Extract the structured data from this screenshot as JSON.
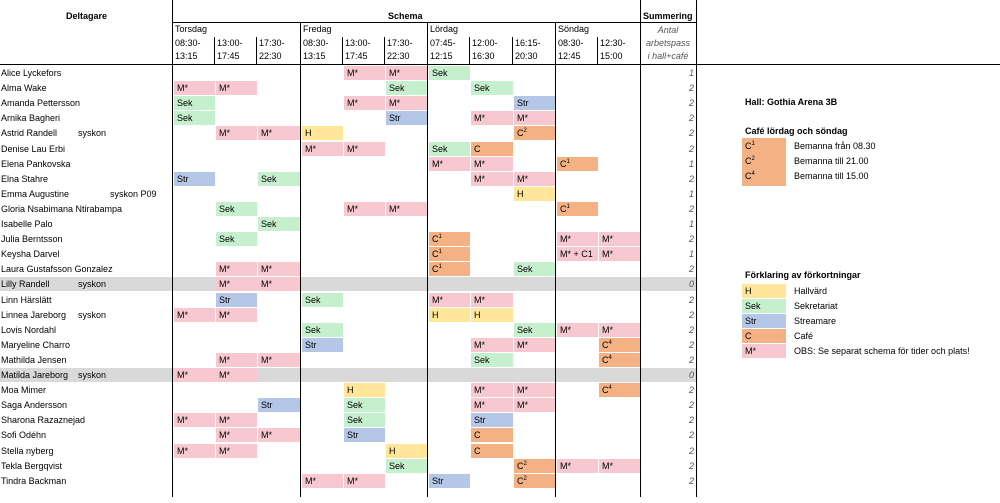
{
  "headers": {
    "participants": "Deltagare",
    "schedule": "Schema",
    "summary": "Summering",
    "summary_sub": [
      "Antal",
      "arbetspass",
      "i hall+café"
    ]
  },
  "days": [
    {
      "name": "Torsdag",
      "slots": [
        [
          "08:30-",
          "13:15"
        ],
        [
          "13:00-",
          "17:45"
        ],
        [
          "17:30-",
          "22:30"
        ]
      ]
    },
    {
      "name": "Fredag",
      "slots": [
        [
          "08:30-",
          "13:15"
        ],
        [
          "13:00-",
          "17:45"
        ],
        [
          "17:30-",
          "22:30"
        ]
      ]
    },
    {
      "name": "Lördag",
      "slots": [
        [
          "07:45-",
          "12:15"
        ],
        [
          "12:00-",
          "16:30"
        ],
        [
          "16:15-",
          "20:30"
        ]
      ]
    },
    {
      "name": "Söndag",
      "slots": [
        [
          "08:30-",
          "12:45"
        ],
        [
          "12:30-",
          "15:00"
        ]
      ]
    }
  ],
  "colors": {
    "sek": "#c6efce",
    "mstar": "#f8c8d0",
    "str": "#b4c7e7",
    "cafe": "#f4b183",
    "h": "#ffe699",
    "grey": "#d9d9d9"
  },
  "rows": [
    {
      "name": "Alice Lyckefors",
      "note": "",
      "count": "1",
      "grey": false,
      "cells": {
        "4": "M*",
        "5": "M*",
        "6": "Sek"
      }
    },
    {
      "name": "Alma Wake",
      "note": "",
      "count": "2",
      "grey": false,
      "cells": {
        "0": "M*",
        "1": "M*",
        "5": "Sek",
        "7": "Sek"
      }
    },
    {
      "name": "Amanda Pettersson",
      "note": "",
      "count": "2",
      "grey": false,
      "cells": {
        "0": "Sek",
        "4": "M*",
        "5": "M*",
        "8": "Str"
      }
    },
    {
      "name": "Arnika Bagheri",
      "note": "",
      "count": "2",
      "grey": false,
      "cells": {
        "0": "Sek",
        "5": "Str",
        "7": "M*",
        "8": "M*"
      }
    },
    {
      "name": "Astrid Randell",
      "note": "syskon",
      "count": "2",
      "grey": false,
      "cells": {
        "1": "M*",
        "2": "M*",
        "3": "H",
        "8": "C^2"
      }
    },
    {
      "name": "Denise Lau Erbi",
      "note": "",
      "count": "2",
      "grey": false,
      "cells": {
        "3": "M*",
        "4": "M*",
        "6": "Sek",
        "7": "C"
      }
    },
    {
      "name": "Elena Pankovska",
      "note": "",
      "count": "1",
      "grey": false,
      "cells": {
        "6": "M*",
        "7": "M*",
        "9": "C^1"
      }
    },
    {
      "name": "Elna Stahre",
      "note": "",
      "count": "2",
      "grey": false,
      "cells": {
        "0": "Str",
        "2": "Sek",
        "7": "M*",
        "8": "M*"
      }
    },
    {
      "name": "Emma Augustine",
      "note": "syskon P09",
      "count": "1",
      "grey": false,
      "cells": {
        "8": "H"
      }
    },
    {
      "name": "Gloria Nsabimana Ntirabampa",
      "note": "",
      "count": "2",
      "grey": false,
      "cells": {
        "1": "Sek",
        "4": "M*",
        "5": "M*",
        "9": "C^1"
      }
    },
    {
      "name": "Isabelle Palo",
      "note": "",
      "count": "1",
      "grey": false,
      "cells": {
        "2": "Sek"
      }
    },
    {
      "name": "Julia Berntsson",
      "note": "",
      "count": "2",
      "grey": false,
      "cells": {
        "1": "Sek",
        "6": "C^1",
        "9": "M*",
        "10": "M*"
      }
    },
    {
      "name": "Keysha Darvel",
      "note": "",
      "count": "1",
      "grey": false,
      "cells": {
        "6": "C^1",
        "9": "M* + C1",
        "10": "M*"
      }
    },
    {
      "name": "Laura Gustafsson Gonzalez",
      "note": "",
      "count": "2",
      "grey": false,
      "cells": {
        "1": "M*",
        "2": "M*",
        "6": "C^1",
        "8": "Sek"
      }
    },
    {
      "name": "Lilly Randell",
      "note": "syskon",
      "count": "0",
      "grey": true,
      "cells": {
        "1": "M*",
        "2": "M*"
      }
    },
    {
      "name": "Linn Härslätt",
      "note": "",
      "count": "2",
      "grey": false,
      "cells": {
        "1": "Str",
        "3": "Sek",
        "6": "M*",
        "7": "M*"
      }
    },
    {
      "name": "Linnea Jareborg",
      "note": "syskon",
      "count": "2",
      "grey": false,
      "cells": {
        "0": "M*",
        "1": "M*",
        "6": "H",
        "7": "H"
      }
    },
    {
      "name": "Lovis Nordahl",
      "note": "",
      "count": "2",
      "grey": false,
      "cells": {
        "3": "Sek",
        "8": "Sek",
        "9": "M*",
        "10": "M*"
      }
    },
    {
      "name": "Maryeline Charro",
      "note": "",
      "count": "2",
      "grey": false,
      "cells": {
        "3": "Str",
        "7": "M*",
        "8": "M*",
        "10": "C^4"
      }
    },
    {
      "name": "Mathilda Jensen",
      "note": "",
      "count": "2",
      "grey": false,
      "cells": {
        "1": "M*",
        "2": "M*",
        "7": "Sek",
        "10": "C^4"
      }
    },
    {
      "name": "Matilda Jareborg",
      "note": "syskon",
      "count": "0",
      "grey": true,
      "cells": {
        "0": "M*",
        "1": "M*"
      }
    },
    {
      "name": "Moa Mimer",
      "note": "",
      "count": "2",
      "grey": false,
      "cells": {
        "4": "H",
        "7": "M*",
        "8": "M*",
        "10": "C^4"
      }
    },
    {
      "name": "Saga Andersson",
      "note": "",
      "count": "2",
      "grey": false,
      "cells": {
        "2": "Str",
        "4": "Sek",
        "7": "M*",
        "8": "M*"
      }
    },
    {
      "name": "Sharona Razaznejad",
      "note": "",
      "count": "2",
      "grey": false,
      "cells": {
        "0": "M*",
        "1": "M*",
        "4": "Sek",
        "7": "Str"
      }
    },
    {
      "name": "Sofi Odéhn",
      "note": "",
      "count": "2",
      "grey": false,
      "cells": {
        "1": "M*",
        "2": "M*",
        "4": "Str",
        "7": "C"
      }
    },
    {
      "name": "Stella nyberg",
      "note": "",
      "count": "2",
      "grey": false,
      "cells": {
        "0": "M*",
        "1": "M*",
        "5": "H",
        "7": "C"
      }
    },
    {
      "name": "Tekla Bergqvist",
      "note": "",
      "count": "2",
      "grey": false,
      "cells": {
        "5": "Sek",
        "8": "C^2",
        "9": "M*",
        "10": "M*"
      }
    },
    {
      "name": "Tindra Backman",
      "note": "",
      "count": "2",
      "grey": false,
      "cells": {
        "3": "M*",
        "4": "M*",
        "6": "Str",
        "8": "C^2"
      }
    }
  ],
  "hall": "Hall: Gothia Arena 3B",
  "cafe_title": "Café lördag och söndag",
  "cafe_legend": [
    {
      "code": "C",
      "sup": "1",
      "text": "Bemanna från 08.30"
    },
    {
      "code": "C",
      "sup": "2",
      "text": "Bemanna till 21.00"
    },
    {
      "code": "C",
      "sup": "4",
      "text": "Bemanna till 15.00"
    }
  ],
  "abbr_title": "Förklaring av förkortningar",
  "abbr_legend": [
    {
      "code": "H",
      "kind": "h",
      "text": "Hallvärd"
    },
    {
      "code": "Sek",
      "kind": "sek",
      "text": "Sekretariat"
    },
    {
      "code": "Str",
      "kind": "str",
      "text": "Streamare"
    },
    {
      "code": "C",
      "kind": "cafe",
      "text": "Café"
    },
    {
      "code": "M*",
      "kind": "mstar",
      "text": "OBS: Se separat schema för tider och plats!"
    }
  ]
}
